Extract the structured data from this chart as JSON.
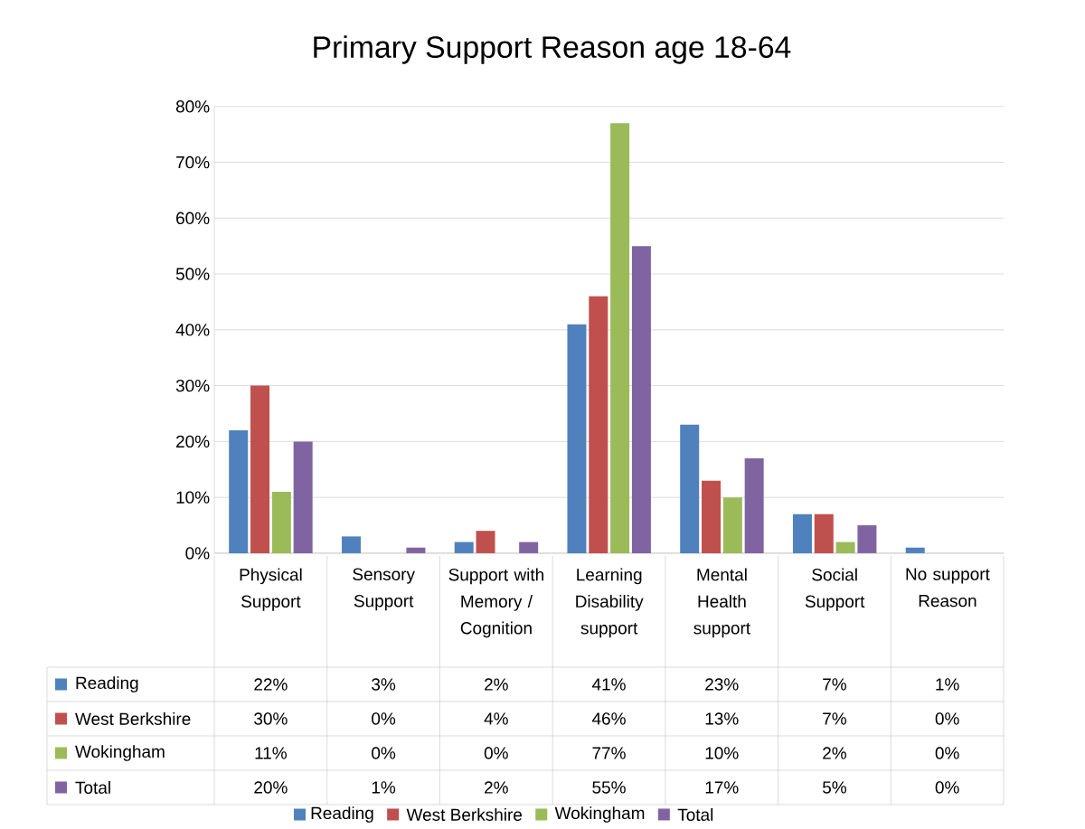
{
  "chart_data": {
    "type": "bar",
    "title": "Primary Support Reason age 18-64",
    "categories": [
      "Physical Support",
      "Sensory Support",
      "Support with Memory / Cognition",
      "Learning Disability support",
      "Mental Health support",
      "Social Support",
      "No support Reason"
    ],
    "series": [
      {
        "name": "Reading",
        "color": "#4f81bd",
        "values": [
          22,
          3,
          2,
          41,
          23,
          7,
          1
        ],
        "value_labels": [
          "22%",
          "3%",
          "2%",
          "41%",
          "23%",
          "7%",
          "1%"
        ]
      },
      {
        "name": "West Berkshire",
        "color": "#c0504d",
        "values": [
          30,
          0,
          4,
          46,
          13,
          7,
          0
        ],
        "value_labels": [
          "30%",
          "0%",
          "4%",
          "46%",
          "13%",
          "7%",
          "0%"
        ]
      },
      {
        "name": "Wokingham",
        "color": "#9bbb59",
        "values": [
          11,
          0,
          0,
          77,
          10,
          2,
          0
        ],
        "value_labels": [
          "11%",
          "0%",
          "0%",
          "77%",
          "10%",
          "2%",
          "0%"
        ]
      },
      {
        "name": "Total",
        "color": "#8064a2",
        "values": [
          20,
          1,
          2,
          55,
          17,
          5,
          0
        ],
        "value_labels": [
          "20%",
          "1%",
          "2%",
          "55%",
          "17%",
          "5%",
          "0%"
        ]
      }
    ],
    "ylim": [
      0,
      80
    ],
    "yticks": [
      {
        "value": 0,
        "label": "0%"
      },
      {
        "value": 10,
        "label": "10%"
      },
      {
        "value": 20,
        "label": "20%"
      },
      {
        "value": 30,
        "label": "30%"
      },
      {
        "value": 40,
        "label": "40%"
      },
      {
        "value": 50,
        "label": "50%"
      },
      {
        "value": 60,
        "label": "60%"
      },
      {
        "value": 70,
        "label": "70%"
      },
      {
        "value": 80,
        "label": "80%"
      }
    ],
    "grid": "y",
    "legend": "bottom"
  }
}
